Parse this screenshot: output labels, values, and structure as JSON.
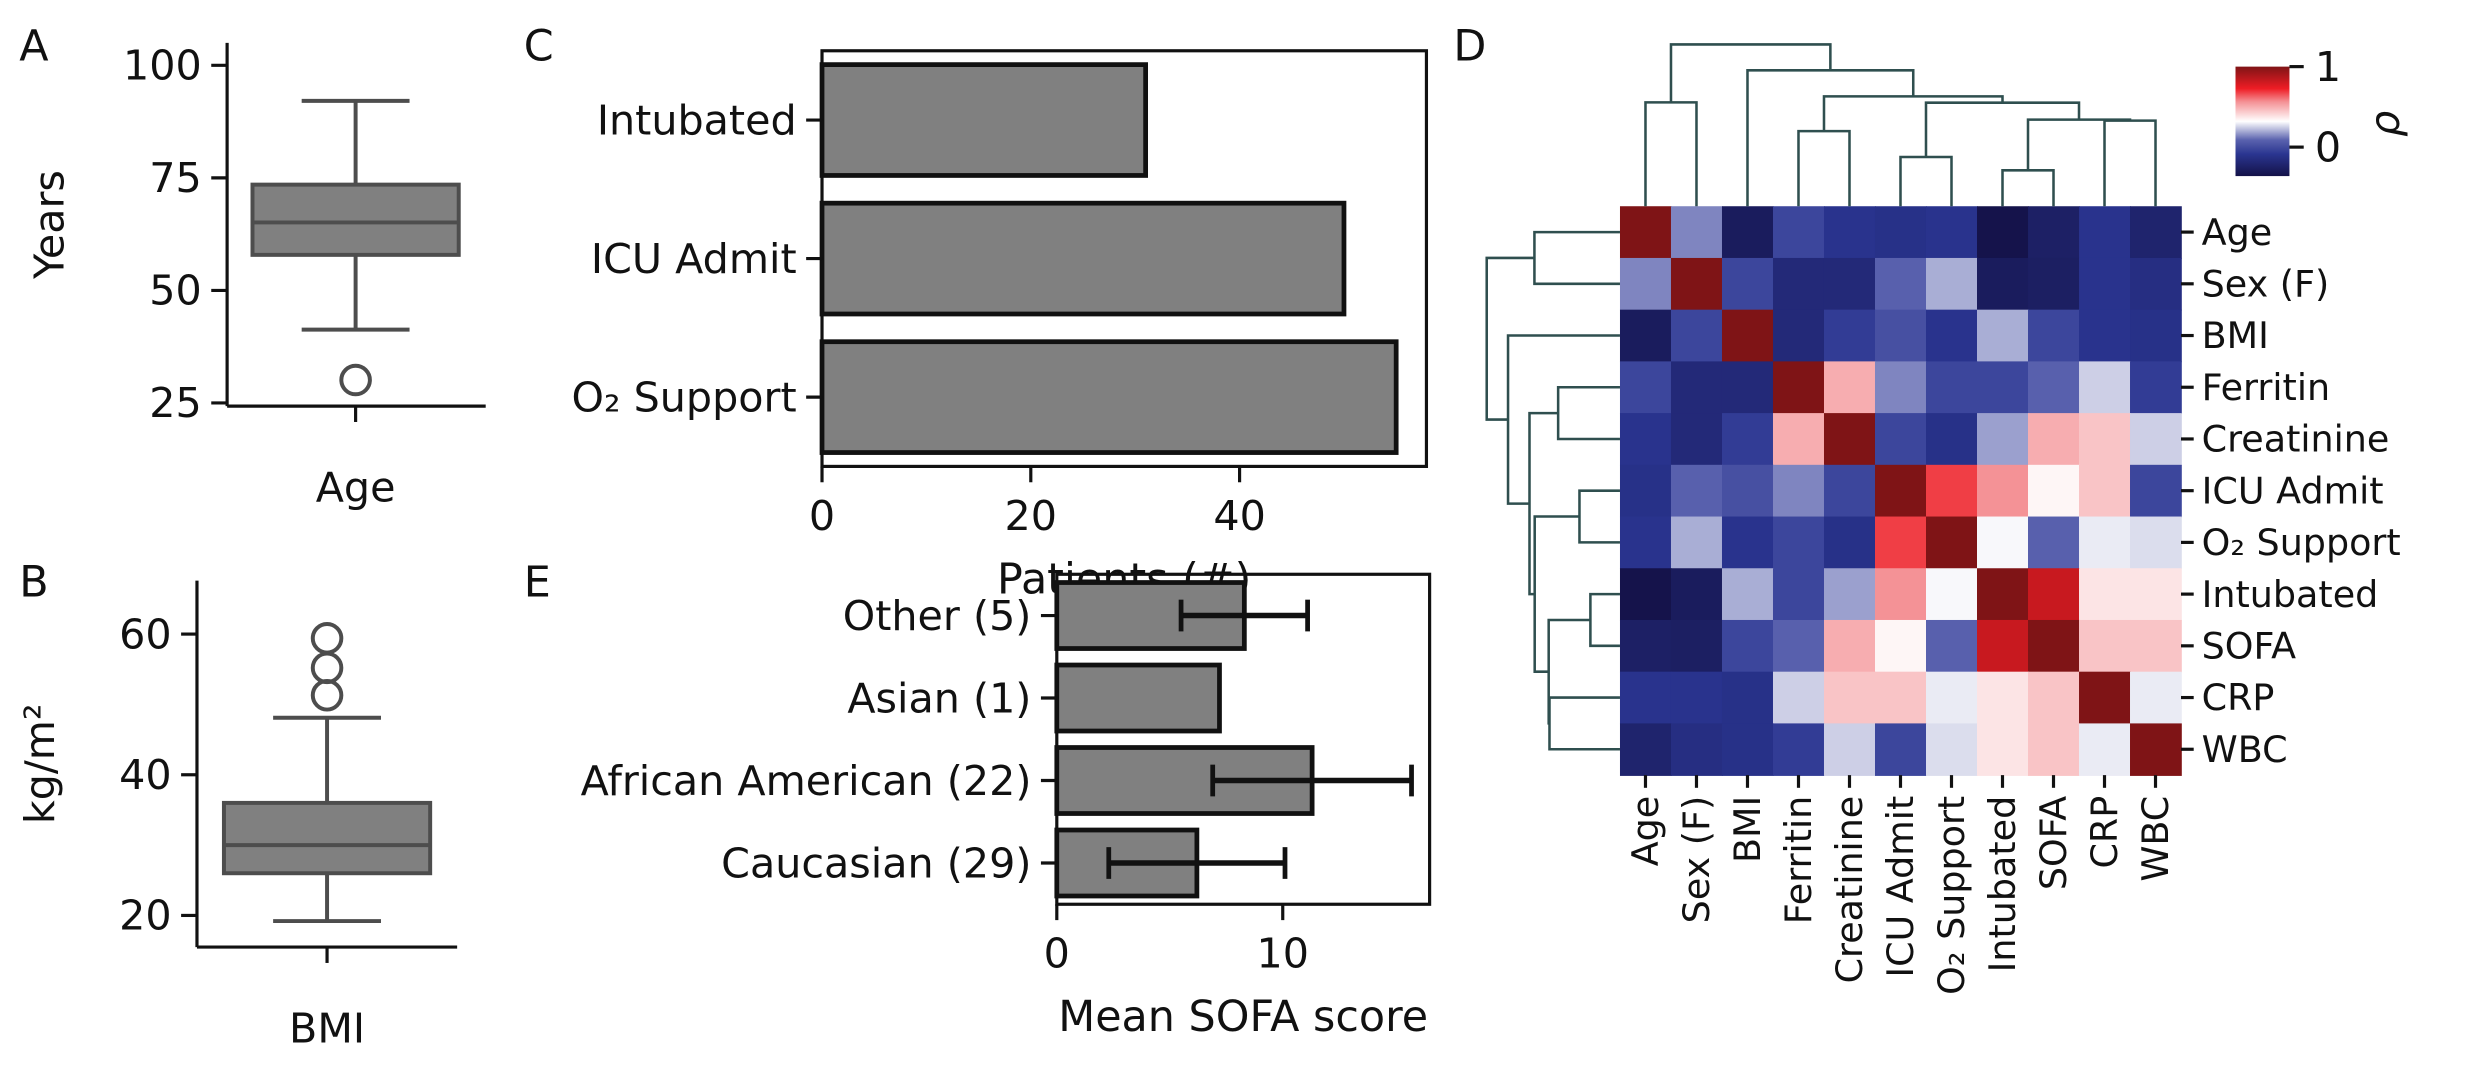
{
  "panel_labels": {
    "a": "A",
    "b": "B",
    "c": "C",
    "d": "D",
    "e": "E"
  },
  "chart_data": [
    {
      "id": "A",
      "type": "box",
      "title": "",
      "ylabel": "Years",
      "categories": [
        "Age"
      ],
      "ylim": [
        24.3,
        105
      ],
      "yticks": [
        25,
        50,
        75,
        100
      ],
      "box": {
        "whisker_low": 41.3,
        "q1": 57.9,
        "median": 65.1,
        "q3": 73.5,
        "whisker_high": 92.1,
        "outliers": [
          30.1
        ]
      },
      "colors": {
        "fill": "#808080",
        "edge": "#4d4d4d"
      }
    },
    {
      "id": "B",
      "type": "box",
      "title": "",
      "ylabel": "kg/m²",
      "categories": [
        "BMI"
      ],
      "ylim": [
        15.5,
        67.6
      ],
      "yticks": [
        20,
        40,
        60
      ],
      "box": {
        "whisker_low": 19.2,
        "q1": 26.0,
        "median": 30.0,
        "q3": 36.0,
        "whisker_high": 48.1,
        "outliers": [
          51.3,
          55.2,
          59.4
        ]
      },
      "colors": {
        "fill": "#808080",
        "edge": "#4d4d4d"
      }
    },
    {
      "id": "C",
      "type": "bar",
      "orientation": "horizontal",
      "xlabel": "Patients (#)",
      "ylabel": "",
      "categories": [
        "Intubated",
        "ICU Admit",
        "O₂ Support"
      ],
      "values": [
        31,
        50,
        55
      ],
      "xlim": [
        0,
        57.9
      ],
      "xticks": [
        0,
        20,
        40
      ],
      "colors": {
        "fill": "#808080",
        "edge": "#111111"
      }
    },
    {
      "id": "D",
      "type": "heatmap",
      "title": "",
      "labels": [
        "Age",
        "Sex (F)",
        "BMI",
        "Ferritin",
        "Creatinine",
        "ICU Admit",
        "O₂ Support",
        "Intubated",
        "SOFA",
        "CRP",
        "WBC"
      ],
      "colorbar": {
        "label": "ρ",
        "vmin": -0.36,
        "vmax": 1,
        "ticks": [
          0,
          1
        ],
        "stops": [
          [
            0,
            "#141248"
          ],
          [
            0.2,
            "#2a3590"
          ],
          [
            0.33,
            "#5a62ae"
          ],
          [
            0.5,
            "#ffffff"
          ],
          [
            0.68,
            "#f49094"
          ],
          [
            0.8,
            "#ee1c24"
          ],
          [
            1,
            "#7f1416"
          ]
        ]
      },
      "matrix": [
        [
          1,
          0.14,
          -0.28,
          -0.02,
          -0.1,
          -0.12,
          -0.1,
          -0.35,
          -0.25,
          -0.1,
          -0.22
        ],
        [
          0.14,
          1,
          -0.02,
          -0.18,
          -0.18,
          0.08,
          0.2,
          -0.28,
          -0.26,
          -0.1,
          -0.14
        ],
        [
          -0.28,
          -0.02,
          1,
          -0.18,
          -0.06,
          0.02,
          -0.1,
          0.2,
          -0.02,
          -0.1,
          -0.12
        ],
        [
          -0.02,
          -0.18,
          -0.18,
          1,
          0.5,
          0.14,
          -0.02,
          -0.02,
          0.08,
          0.25,
          -0.06
        ],
        [
          -0.1,
          -0.18,
          -0.06,
          0.5,
          1,
          -0.02,
          -0.12,
          0.18,
          0.5,
          0.45,
          0.25
        ],
        [
          -0.12,
          0.08,
          0.02,
          0.14,
          -0.02,
          1,
          0.68,
          0.56,
          0.34,
          0.45,
          -0.02
        ],
        [
          -0.1,
          0.2,
          -0.1,
          -0.02,
          -0.12,
          0.68,
          1,
          0.31,
          0.08,
          0.29,
          0.27
        ],
        [
          -0.35,
          -0.28,
          0.2,
          -0.02,
          0.18,
          0.56,
          0.31,
          1,
          0.82,
          0.38,
          0.38
        ],
        [
          -0.25,
          -0.26,
          -0.02,
          0.08,
          0.5,
          0.34,
          0.08,
          0.82,
          1,
          0.45,
          0.45
        ],
        [
          -0.1,
          -0.1,
          -0.12,
          0.25,
          0.45,
          0.45,
          0.29,
          0.38,
          0.45,
          1,
          0.29
        ],
        [
          -0.22,
          -0.14,
          -0.12,
          -0.06,
          0.25,
          -0.02,
          0.27,
          0.38,
          0.45,
          0.29,
          1
        ]
      ],
      "dendrogram_linkage": [
        [
          0,
          1,
          0.642
        ],
        [
          7,
          8,
          0.222
        ],
        [
          5,
          6,
          0.304
        ],
        [
          3,
          4,
          0.464
        ],
        [
          9,
          10,
          0.529
        ],
        [
          12,
          15,
          0.535
        ],
        [
          13,
          16,
          0.64
        ],
        [
          14,
          17,
          0.679
        ],
        [
          2,
          18,
          0.84
        ],
        [
          11,
          19,
          1.0
        ]
      ],
      "dendrogram_color": "#2f4f4f"
    },
    {
      "id": "E",
      "type": "bar",
      "orientation": "horizontal",
      "xlabel": "Mean SOFA score",
      "ylabel": "",
      "categories": [
        "Other (5)",
        "Asian (1)",
        "African American (22)",
        "Caucasian (29)"
      ],
      "values": [
        8.3,
        7.2,
        11.3,
        6.2
      ],
      "errors": [
        2.8,
        null,
        4.4,
        3.9
      ],
      "xlim": [
        0,
        16.5
      ],
      "xticks": [
        0,
        10
      ],
      "colors": {
        "fill": "#808080",
        "edge": "#111111"
      }
    }
  ]
}
